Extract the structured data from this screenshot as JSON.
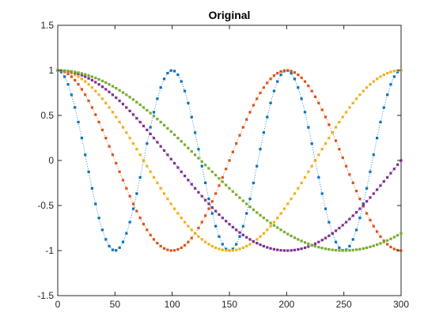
{
  "chart_data": {
    "type": "line",
    "title": "Original",
    "xlabel": "",
    "ylabel": "",
    "xlim": [
      0,
      300
    ],
    "ylim": [
      -1.5,
      1.5
    ],
    "x_ticks": [
      0,
      50,
      100,
      150,
      200,
      250,
      300
    ],
    "y_ticks": [
      -1.5,
      -1,
      -0.5,
      0,
      0.5,
      1,
      1.5
    ],
    "grid": false,
    "legend": "none",
    "x_start": 0,
    "x_end": 300,
    "x_step": 3,
    "series": [
      {
        "formula": "cos(pi*x/50)",
        "color": "#0072BD",
        "line_style": "dotted",
        "marker": "point"
      },
      {
        "formula": "cos(pi*x/100)",
        "color": "#D95319",
        "line_style": "dotted",
        "marker": "point"
      },
      {
        "formula": "cos(pi*x/150)",
        "color": "#EDB120",
        "line_style": "dotted",
        "marker": "point"
      },
      {
        "formula": "cos(pi*x/200)",
        "color": "#7E2F8E",
        "line_style": "dotted",
        "marker": "point"
      },
      {
        "formula": "cos(pi*x/250)",
        "color": "#77AC30",
        "line_style": "dotted",
        "marker": "point"
      }
    ],
    "periods": [
      100,
      200,
      300,
      400,
      500
    ]
  }
}
